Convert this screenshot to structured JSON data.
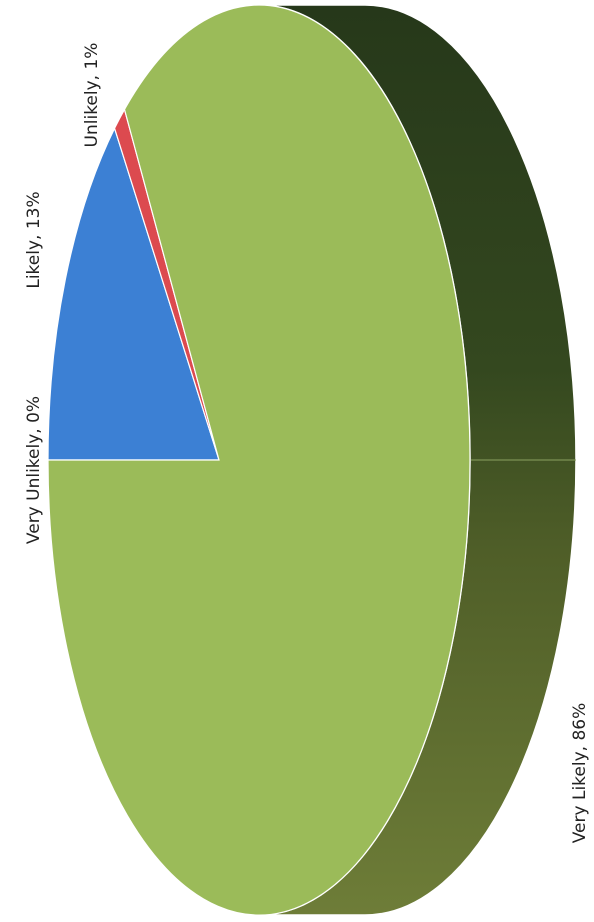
{
  "chart_data": {
    "type": "pie",
    "categories": [
      "Very Unlikely",
      "Likely",
      "Unlikely",
      "Very Likely"
    ],
    "values": [
      0,
      13,
      1,
      86
    ],
    "value_labels": [
      "Very Unlikely, 0%",
      "Likely, 13%",
      "Unlikely, 1%",
      "Very Likely, 86%"
    ],
    "colors": [
      "#7b5ea8",
      "#3c80d4",
      "#dc4a4f",
      "#9bbb59"
    ]
  }
}
